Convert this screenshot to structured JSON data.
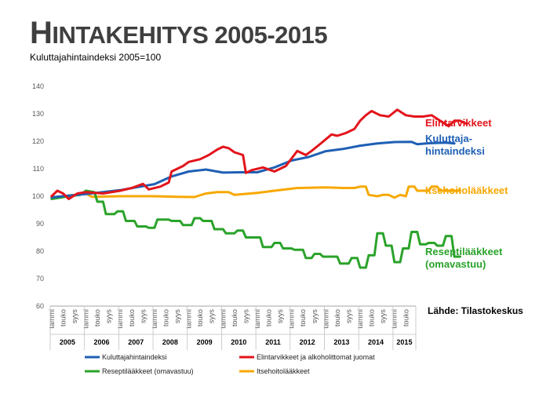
{
  "header": {
    "title_big": "H",
    "title_rest": "INTAKEHITYS 2005-2015",
    "subtitle": "Kuluttajahintaindeksi 2005=100"
  },
  "source_note": "Lähde: Tilastokeskus",
  "chart_data": {
    "type": "line",
    "title": "HINTAKEHITYS 2005-2015",
    "ylabel": "Kuluttajahintaindeksi 2005=100",
    "ylim": [
      60,
      140
    ],
    "yticks": [
      60,
      70,
      80,
      90,
      100,
      110,
      120,
      130,
      140
    ],
    "x_start": "2005-01",
    "x_end": "2015-09",
    "month_tick_labels": [
      "tammi",
      "touko",
      "syys"
    ],
    "years": [
      "2005",
      "2006",
      "2007",
      "2008",
      "2009",
      "2010",
      "2011",
      "2012",
      "2013",
      "2014",
      "2015"
    ],
    "grid": false,
    "legend_position": "bottom",
    "series": [
      {
        "name": "Kuluttajahintaindeksi",
        "annotation": [
          "Kuluttaja-",
          "hintaindeksi"
        ],
        "color": "#1f5fb4",
        "points": [
          [
            0,
            99.6
          ],
          [
            6,
            100.2
          ],
          [
            12,
            100.8
          ],
          [
            18,
            101.5
          ],
          [
            24,
            102.2
          ],
          [
            30,
            103.3
          ],
          [
            36,
            104.4
          ],
          [
            42,
            107.2
          ],
          [
            48,
            109.0
          ],
          [
            54,
            109.7
          ],
          [
            60,
            108.6
          ],
          [
            66,
            108.7
          ],
          [
            72,
            108.7
          ],
          [
            78,
            110.5
          ],
          [
            84,
            113.0
          ],
          [
            90,
            114.3
          ],
          [
            96,
            116.4
          ],
          [
            102,
            117.2
          ],
          [
            108,
            118.4
          ],
          [
            114,
            119.2
          ],
          [
            120,
            119.7
          ],
          [
            126,
            119.8
          ],
          [
            128,
            118.9
          ],
          [
            132,
            119.3
          ],
          [
            138,
            119.5
          ],
          [
            141,
            119.2
          ]
        ]
      },
      {
        "name": "Elintarvikkeet ja alkoholittomat juomat",
        "annotation": [
          "Elintarvikkeet"
        ],
        "color": "#e3141b",
        "points": [
          [
            0,
            100
          ],
          [
            2,
            102
          ],
          [
            4,
            101
          ],
          [
            6,
            99
          ],
          [
            9,
            101
          ],
          [
            12,
            101.5
          ],
          [
            18,
            101
          ],
          [
            24,
            102
          ],
          [
            28,
            103
          ],
          [
            32,
            104.5
          ],
          [
            34,
            102.5
          ],
          [
            38,
            103.5
          ],
          [
            41,
            105
          ],
          [
            42,
            109
          ],
          [
            46,
            111
          ],
          [
            48,
            112.5
          ],
          [
            52,
            113.5
          ],
          [
            55,
            115
          ],
          [
            58,
            117
          ],
          [
            60,
            118
          ],
          [
            62,
            117.5
          ],
          [
            64,
            116
          ],
          [
            67,
            115
          ],
          [
            68,
            108.5
          ],
          [
            70,
            109.5
          ],
          [
            74,
            110.5
          ],
          [
            78,
            109
          ],
          [
            82,
            111
          ],
          [
            86,
            116.5
          ],
          [
            89,
            115
          ],
          [
            91,
            116.5
          ],
          [
            94,
            119
          ],
          [
            98,
            122.5
          ],
          [
            100,
            122
          ],
          [
            103,
            123
          ],
          [
            106,
            124.5
          ],
          [
            108,
            127.5
          ],
          [
            110,
            129.5
          ],
          [
            112,
            131
          ],
          [
            115,
            129.5
          ],
          [
            118,
            129
          ],
          [
            121,
            131.5
          ],
          [
            124,
            129.5
          ],
          [
            127,
            129
          ],
          [
            130,
            129
          ],
          [
            133,
            129.5
          ],
          [
            136,
            127.5
          ],
          [
            139,
            125.5
          ],
          [
            141,
            127.5
          ],
          [
            143,
            127.5
          ],
          [
            145,
            126.5
          ]
        ]
      },
      {
        "name": "Reseptilääkkeet (omavastuu)",
        "annotation": [
          "Reseptilääkkeet",
          "(omavastuu)"
        ],
        "color": "#2aa32a",
        "points": [
          [
            0,
            99
          ],
          [
            6,
            100
          ],
          [
            10,
            100.5
          ],
          [
            12,
            102
          ],
          [
            15,
            101.5
          ],
          [
            16,
            98
          ],
          [
            18,
            98
          ],
          [
            19,
            93.5
          ],
          [
            22,
            93.5
          ],
          [
            23,
            94.5
          ],
          [
            25,
            94.5
          ],
          [
            26,
            91
          ],
          [
            29,
            91
          ],
          [
            30,
            89
          ],
          [
            33,
            89
          ],
          [
            34,
            88.5
          ],
          [
            36,
            88.5
          ],
          [
            37,
            91.5
          ],
          [
            41,
            91.5
          ],
          [
            42,
            91
          ],
          [
            45,
            91
          ],
          [
            46,
            89.5
          ],
          [
            49,
            89.5
          ],
          [
            50,
            92
          ],
          [
            52,
            92
          ],
          [
            53,
            91
          ],
          [
            56,
            91
          ],
          [
            57,
            88
          ],
          [
            60,
            88
          ],
          [
            61,
            86.5
          ],
          [
            64,
            86.5
          ],
          [
            65,
            87.5
          ],
          [
            67,
            87.5
          ],
          [
            68,
            85
          ],
          [
            73,
            85
          ],
          [
            74,
            81.5
          ],
          [
            77,
            81.5
          ],
          [
            78,
            83
          ],
          [
            80,
            83
          ],
          [
            81,
            81
          ],
          [
            84,
            81
          ],
          [
            85,
            80.5
          ],
          [
            88,
            80.5
          ],
          [
            89,
            77.5
          ],
          [
            91,
            77.5
          ],
          [
            92,
            79
          ],
          [
            94,
            79
          ],
          [
            95,
            78
          ],
          [
            100,
            78
          ],
          [
            101,
            75.5
          ],
          [
            104,
            75.5
          ],
          [
            105,
            77.5
          ],
          [
            107,
            77.5
          ],
          [
            108,
            74
          ],
          [
            110,
            74
          ],
          [
            111,
            78.5
          ],
          [
            113,
            78.5
          ],
          [
            114,
            86.5
          ],
          [
            116,
            86.5
          ],
          [
            117,
            82
          ],
          [
            119,
            82
          ],
          [
            120,
            76
          ],
          [
            122,
            76
          ],
          [
            123,
            81
          ],
          [
            125,
            81
          ],
          [
            126,
            87
          ],
          [
            128,
            87
          ],
          [
            129,
            82.5
          ],
          [
            131,
            82.5
          ],
          [
            132,
            83
          ],
          [
            134,
            83
          ],
          [
            135,
            82
          ],
          [
            137,
            82
          ],
          [
            138,
            85.5
          ],
          [
            140,
            85.5
          ],
          [
            141,
            78
          ],
          [
            143,
            78
          ]
        ]
      },
      {
        "name": "Itsehoitolääkkeet",
        "annotation": [
          "Itsehoitolääkkeet"
        ],
        "color": "#f7a800",
        "points": [
          [
            0,
            99.5
          ],
          [
            8,
            100.5
          ],
          [
            12,
            101
          ],
          [
            14,
            99.8
          ],
          [
            24,
            100
          ],
          [
            36,
            100
          ],
          [
            44,
            99.8
          ],
          [
            50,
            99.7
          ],
          [
            54,
            101
          ],
          [
            58,
            101.5
          ],
          [
            62,
            101.5
          ],
          [
            64,
            100.5
          ],
          [
            72,
            101.2
          ],
          [
            78,
            102
          ],
          [
            86,
            103
          ],
          [
            96,
            103.2
          ],
          [
            102,
            103
          ],
          [
            106,
            103
          ],
          [
            108,
            103.5
          ],
          [
            110,
            103.5
          ],
          [
            111,
            100.5
          ],
          [
            114,
            100
          ],
          [
            116,
            100.5
          ],
          [
            118,
            100.5
          ],
          [
            120,
            99.5
          ],
          [
            122,
            100.5
          ],
          [
            124,
            100
          ],
          [
            125,
            103.5
          ],
          [
            127,
            103.5
          ],
          [
            128,
            102
          ],
          [
            132,
            102
          ],
          [
            133,
            103.5
          ],
          [
            135,
            103.5
          ],
          [
            136,
            102
          ],
          [
            140,
            102
          ],
          [
            143,
            102
          ]
        ]
      }
    ]
  }
}
